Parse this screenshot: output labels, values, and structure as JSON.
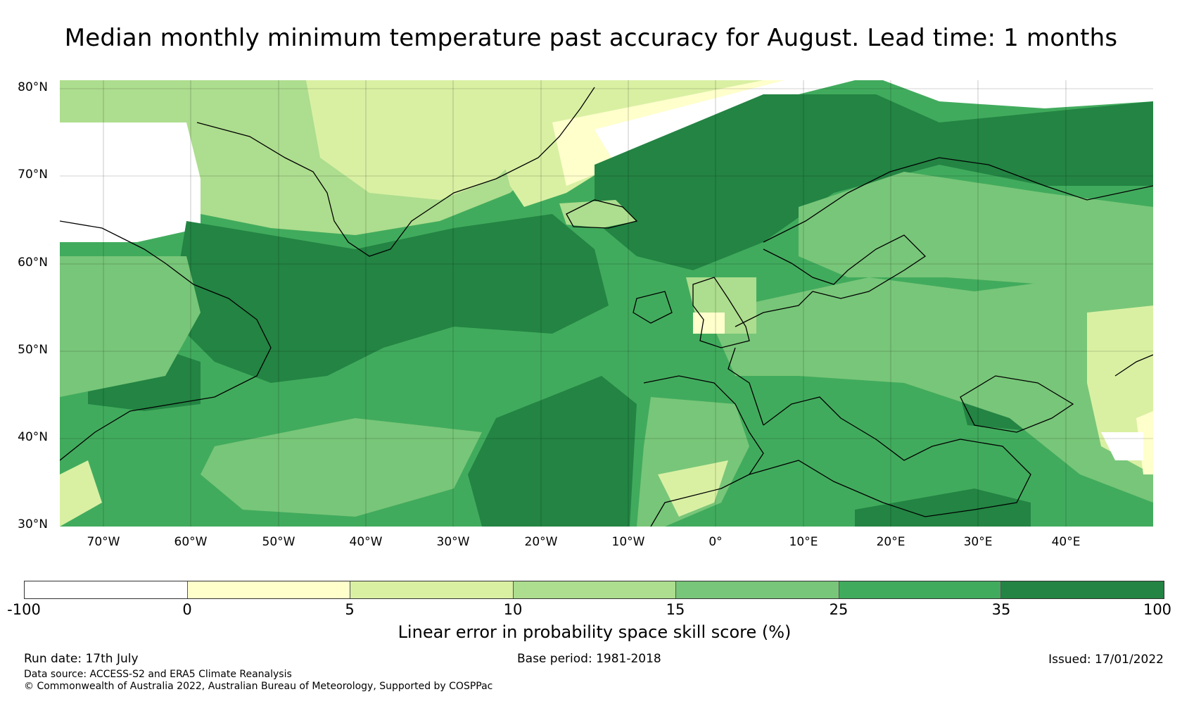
{
  "title": "Median monthly minimum temperature past accuracy for August. Lead time: 1 months",
  "map": {
    "latitude_labels": [
      "80°N",
      "70°N",
      "60°N",
      "50°N",
      "40°N",
      "30°N"
    ],
    "longitude_labels": [
      "70°W",
      "60°W",
      "50°W",
      "40°W",
      "30°W",
      "20°W",
      "10°W",
      "0°",
      "10°E",
      "20°E",
      "30°E",
      "40°E"
    ],
    "extent": {
      "lon_min": -75,
      "lon_max": 50,
      "lat_min": 30,
      "lat_max": 81
    }
  },
  "colorbar": {
    "title": "Linear error in probability space skill score (%)",
    "ticks": [
      "-100",
      "0",
      "5",
      "10",
      "15",
      "25",
      "35",
      "100"
    ],
    "colors": [
      "#ffffff",
      "#ffffcc",
      "#d9f0a3",
      "#addd8e",
      "#78c679",
      "#41ab5d",
      "#238443"
    ]
  },
  "footer": {
    "run_date": "Run date: 17th July",
    "base_period": "Base period: 1981-2018",
    "issued": "Issued: 17/01/2022",
    "data_source": "Data source: ACCESS-S2 and ERA5 Climate Reanalysis",
    "copyright": "© Commonwealth of Australia 2022, Australian Bureau of Meteorology, Supported by COSPPac"
  }
}
